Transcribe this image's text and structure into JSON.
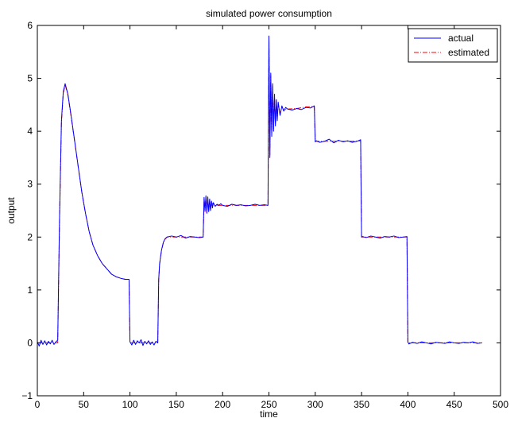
{
  "chart_data": {
    "type": "line",
    "title": "simulated power consumption",
    "xlabel": "time",
    "ylabel": "output",
    "xlim": [
      0,
      500
    ],
    "ylim": [
      -1,
      6
    ],
    "xticks": [
      0,
      50,
      100,
      150,
      200,
      250,
      300,
      350,
      400,
      450,
      500
    ],
    "yticks": [
      -1,
      0,
      1,
      2,
      3,
      4,
      5,
      6
    ],
    "grid": false,
    "legend_position": "top-right",
    "series": [
      {
        "name": "actual",
        "color": "#0000ff",
        "style": "solid",
        "x": [
          0,
          2,
          4,
          6,
          8,
          10,
          12,
          14,
          16,
          18,
          20,
          22,
          24,
          26,
          28,
          30,
          33,
          36,
          40,
          44,
          48,
          52,
          56,
          60,
          65,
          70,
          75,
          80,
          85,
          90,
          95,
          99,
          100,
          102,
          104,
          106,
          108,
          110,
          112,
          114,
          116,
          118,
          120,
          122,
          124,
          126,
          128,
          130,
          131,
          132,
          134,
          136,
          138,
          140,
          145,
          150,
          155,
          160,
          165,
          170,
          175,
          179,
          180,
          181,
          182,
          183,
          184,
          185,
          186,
          187,
          188,
          189,
          190,
          192,
          194,
          196,
          198,
          200,
          205,
          210,
          215,
          220,
          225,
          230,
          235,
          240,
          245,
          249,
          250,
          251,
          252,
          253,
          254,
          255,
          256,
          257,
          258,
          259,
          260,
          262,
          264,
          266,
          268,
          270,
          275,
          280,
          285,
          290,
          295,
          299,
          300,
          301,
          305,
          310,
          315,
          320,
          325,
          330,
          335,
          340,
          345,
          349,
          350,
          351,
          355,
          360,
          365,
          370,
          375,
          380,
          385,
          390,
          395,
          399,
          400,
          401,
          405,
          410,
          415,
          420,
          425,
          430,
          435,
          440,
          445,
          450,
          455,
          460,
          465,
          470,
          475,
          480
        ],
        "y": [
          0.02,
          -0.06,
          0.05,
          -0.03,
          0.04,
          -0.04,
          0.03,
          -0.02,
          0.05,
          -0.03,
          0.02,
          0.05,
          2.4,
          4.2,
          4.75,
          4.9,
          4.7,
          4.35,
          3.85,
          3.35,
          2.85,
          2.45,
          2.1,
          1.85,
          1.65,
          1.5,
          1.4,
          1.3,
          1.25,
          1.22,
          1.2,
          1.2,
          0.02,
          -0.04,
          0.05,
          -0.03,
          0.04,
          0.0,
          0.06,
          -0.05,
          0.03,
          -0.02,
          0.04,
          -0.03,
          0.02,
          -0.04,
          0.03,
          0.0,
          1.2,
          1.5,
          1.75,
          1.9,
          1.97,
          2.0,
          2.02,
          2.0,
          2.03,
          1.98,
          2.01,
          2.0,
          1.99,
          2.0,
          2.75,
          2.5,
          2.78,
          2.45,
          2.76,
          2.48,
          2.72,
          2.5,
          2.68,
          2.55,
          2.65,
          2.58,
          2.62,
          2.6,
          2.63,
          2.6,
          2.58,
          2.62,
          2.6,
          2.61,
          2.59,
          2.6,
          2.62,
          2.6,
          2.61,
          2.6,
          5.8,
          3.5,
          5.1,
          3.9,
          4.9,
          4.0,
          4.7,
          4.1,
          4.6,
          4.2,
          4.55,
          4.3,
          4.48,
          4.38,
          4.45,
          4.42,
          4.4,
          4.43,
          4.41,
          4.45,
          4.44,
          4.48,
          3.8,
          3.82,
          3.79,
          3.81,
          3.85,
          3.78,
          3.83,
          3.8,
          3.82,
          3.79,
          3.81,
          3.84,
          2.0,
          2.01,
          1.99,
          2.02,
          2.0,
          1.98,
          2.01,
          2.0,
          2.02,
          1.99,
          2.0,
          2.01,
          0.02,
          -0.02,
          0.01,
          -0.01,
          0.02,
          0.0,
          -0.02,
          0.01,
          0.0,
          -0.01,
          0.02,
          0.0,
          -0.01,
          0.01,
          0.0,
          0.02,
          -0.01,
          0.0
        ]
      },
      {
        "name": "estimated",
        "color": "#ff0000",
        "style": "dash-dot",
        "x": [
          0,
          22,
          24,
          26,
          28,
          30,
          33,
          36,
          40,
          44,
          48,
          52,
          56,
          60,
          65,
          70,
          75,
          80,
          85,
          90,
          95,
          99,
          100,
          130,
          131,
          132,
          134,
          136,
          138,
          140,
          150,
          160,
          170,
          179,
          180,
          181,
          182,
          183,
          184,
          185,
          186,
          187,
          188,
          190,
          200,
          210,
          220,
          230,
          240,
          249,
          250,
          251,
          252,
          253,
          254,
          255,
          256,
          257,
          258,
          259,
          260,
          262,
          264,
          266,
          270,
          280,
          290,
          299,
          300,
          310,
          320,
          330,
          340,
          349,
          350,
          360,
          370,
          380,
          390,
          399,
          400,
          420,
          440,
          460,
          480
        ],
        "y": [
          0.0,
          0.0,
          2.35,
          4.15,
          4.72,
          4.88,
          4.68,
          4.33,
          3.84,
          3.34,
          2.85,
          2.44,
          2.1,
          1.85,
          1.65,
          1.5,
          1.4,
          1.3,
          1.25,
          1.22,
          1.2,
          1.2,
          0.0,
          0.0,
          1.18,
          1.48,
          1.74,
          1.89,
          1.96,
          2.0,
          2.0,
          2.0,
          2.0,
          2.0,
          2.72,
          2.48,
          2.76,
          2.46,
          2.74,
          2.5,
          2.7,
          2.52,
          2.66,
          2.6,
          2.6,
          2.6,
          2.6,
          2.6,
          2.6,
          2.6,
          5.75,
          3.55,
          5.05,
          3.95,
          4.85,
          4.05,
          4.65,
          4.15,
          4.58,
          4.25,
          4.52,
          4.33,
          4.46,
          4.4,
          4.42,
          4.43,
          4.46,
          4.47,
          3.81,
          3.81,
          3.81,
          3.81,
          3.81,
          3.82,
          2.0,
          2.0,
          2.0,
          2.0,
          2.0,
          2.0,
          0.0,
          0.0,
          0.0,
          0.0,
          0.0
        ]
      }
    ]
  }
}
